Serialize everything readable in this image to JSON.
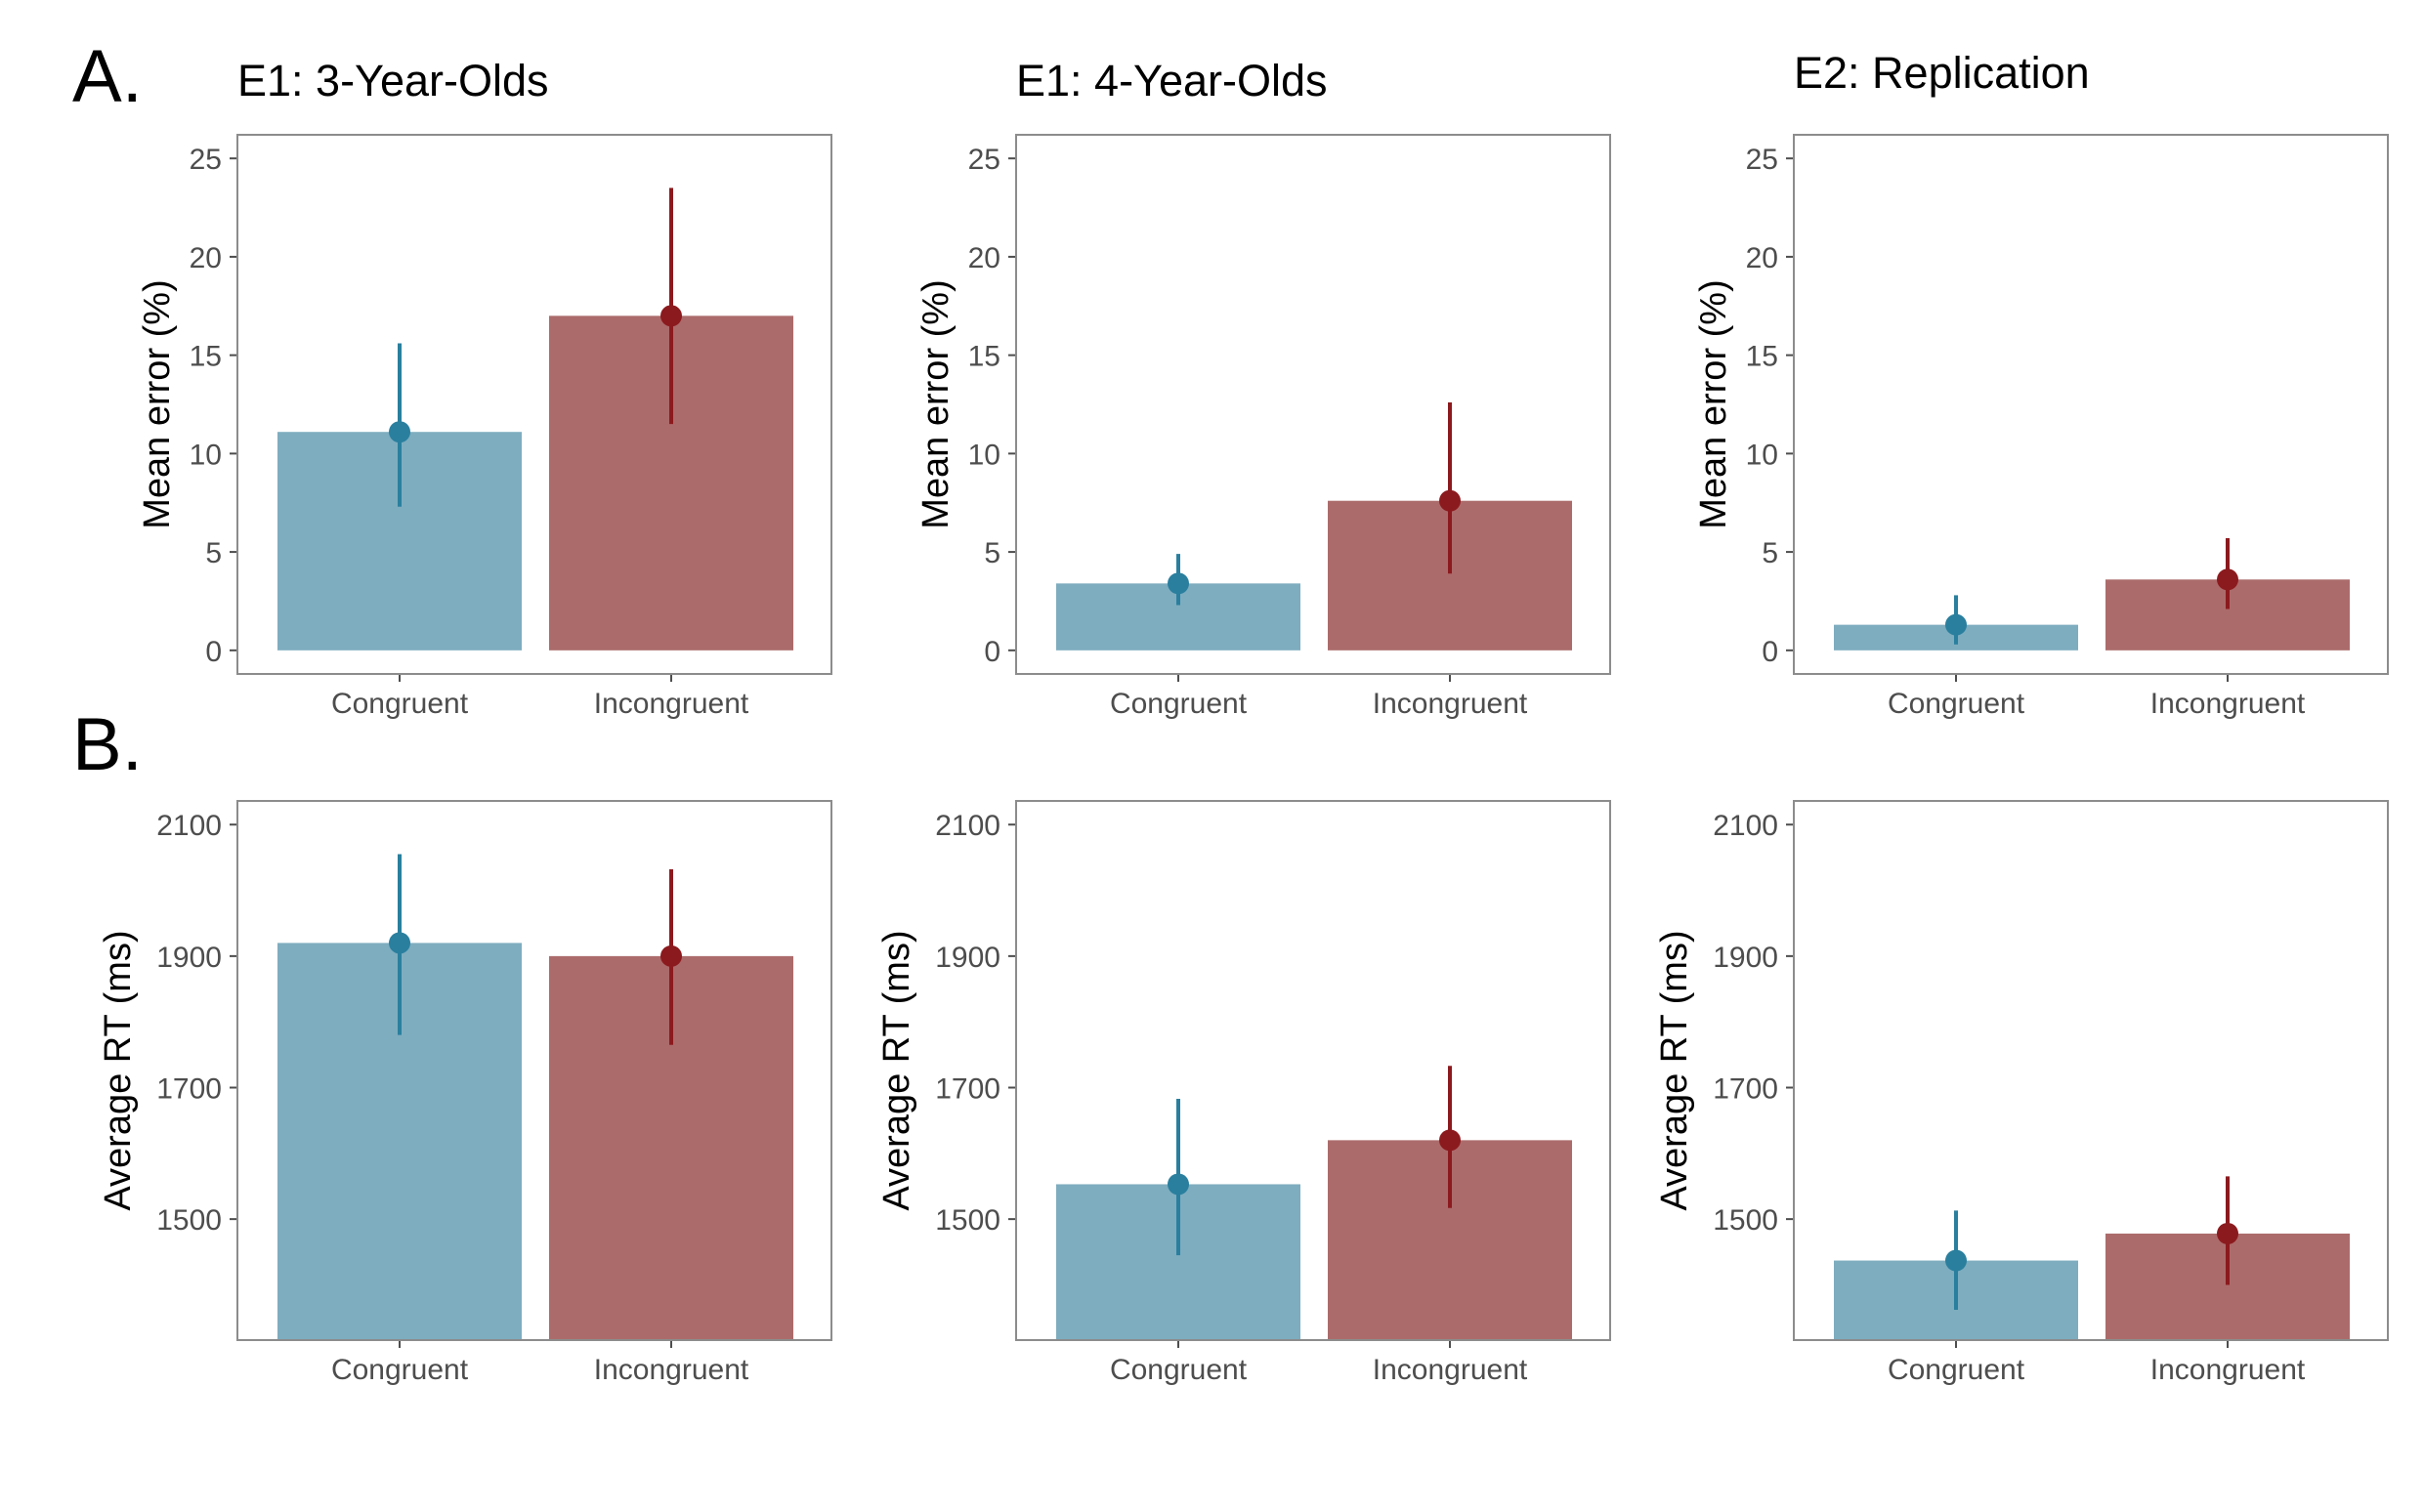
{
  "panel_labels": [
    "A.",
    "B."
  ],
  "colors": {
    "congruent_bar": "#7eadbf",
    "incongruent_bar": "#ac6b6b",
    "congruent_point": "#2a7f9e",
    "incongruent_point": "#8b1a1e"
  },
  "chart_data": [
    {
      "type": "bar",
      "panel": "A.",
      "title": "E1: 3-Year-Olds",
      "xlabel": "",
      "ylabel": "Mean error (%)",
      "categories": [
        "Congruent",
        "Incongruent"
      ],
      "values": [
        11.1,
        17.0
      ],
      "error_low": [
        7.3,
        11.5
      ],
      "error_high": [
        15.6,
        23.5
      ],
      "ylim": [
        -1.2,
        26.2
      ],
      "yticks": [
        0,
        5,
        10,
        15,
        20,
        25
      ],
      "ytick_labels": [
        "0",
        "5",
        "10",
        "15",
        "20",
        "25"
      ]
    },
    {
      "type": "bar",
      "panel": "A.",
      "title": "E1: 4-Year-Olds",
      "xlabel": "",
      "ylabel": "Mean error (%)",
      "categories": [
        "Congruent",
        "Incongruent"
      ],
      "values": [
        3.4,
        7.6
      ],
      "error_low": [
        2.3,
        3.9
      ],
      "error_high": [
        4.9,
        12.6
      ],
      "ylim": [
        -1.2,
        26.2
      ],
      "yticks": [
        0,
        5,
        10,
        15,
        20,
        25
      ],
      "ytick_labels": [
        "0",
        "5",
        "10",
        "15",
        "20",
        "25"
      ]
    },
    {
      "type": "bar",
      "panel": "",
      "title": "E2: Replication",
      "xlabel": "",
      "ylabel": "Mean error (%)",
      "categories": [
        "Congruent",
        "Incongruent"
      ],
      "values": [
        1.3,
        3.6
      ],
      "error_low": [
        0.3,
        2.1
      ],
      "error_high": [
        2.8,
        5.7
      ],
      "ylim": [
        -1.2,
        26.2
      ],
      "yticks": [
        0,
        5,
        10,
        15,
        20,
        25
      ],
      "ytick_labels": [
        "0",
        "5",
        "10",
        "15",
        "20",
        "25"
      ]
    },
    {
      "type": "bar",
      "panel": "B.",
      "title": "",
      "xlabel": "",
      "ylabel": "Average RT (ms)",
      "categories": [
        "Congruent",
        "Incongruent"
      ],
      "values": [
        1920,
        1900
      ],
      "error_low": [
        1780,
        1765
      ],
      "error_high": [
        2055,
        2032
      ],
      "ylim": [
        1316,
        2136
      ],
      "yticks": [
        1500,
        1700,
        1900,
        2100
      ],
      "ytick_labels": [
        "1500",
        "1700",
        "1900",
        "2100"
      ]
    },
    {
      "type": "bar",
      "panel": "",
      "title": "",
      "xlabel": "",
      "ylabel": "Average RT (ms)",
      "categories": [
        "Congruent",
        "Incongruent"
      ],
      "values": [
        1553,
        1620
      ],
      "error_low": [
        1445,
        1517
      ],
      "error_high": [
        1683,
        1733
      ],
      "ylim": [
        1316,
        2136
      ],
      "yticks": [
        1500,
        1700,
        1900,
        2100
      ],
      "ytick_labels": [
        "1500",
        "1700",
        "1900",
        "2100"
      ]
    },
    {
      "type": "bar",
      "panel": "",
      "title": "",
      "xlabel": "",
      "ylabel": "Average RT (ms)",
      "categories": [
        "Congruent",
        "Incongruent"
      ],
      "values": [
        1437,
        1478
      ],
      "error_low": [
        1362,
        1400
      ],
      "error_high": [
        1513,
        1565
      ],
      "ylim": [
        1316,
        2136
      ],
      "yticks": [
        1500,
        1700,
        1900,
        2100
      ],
      "ytick_labels": [
        "1500",
        "1700",
        "1900",
        "2100"
      ]
    }
  ]
}
